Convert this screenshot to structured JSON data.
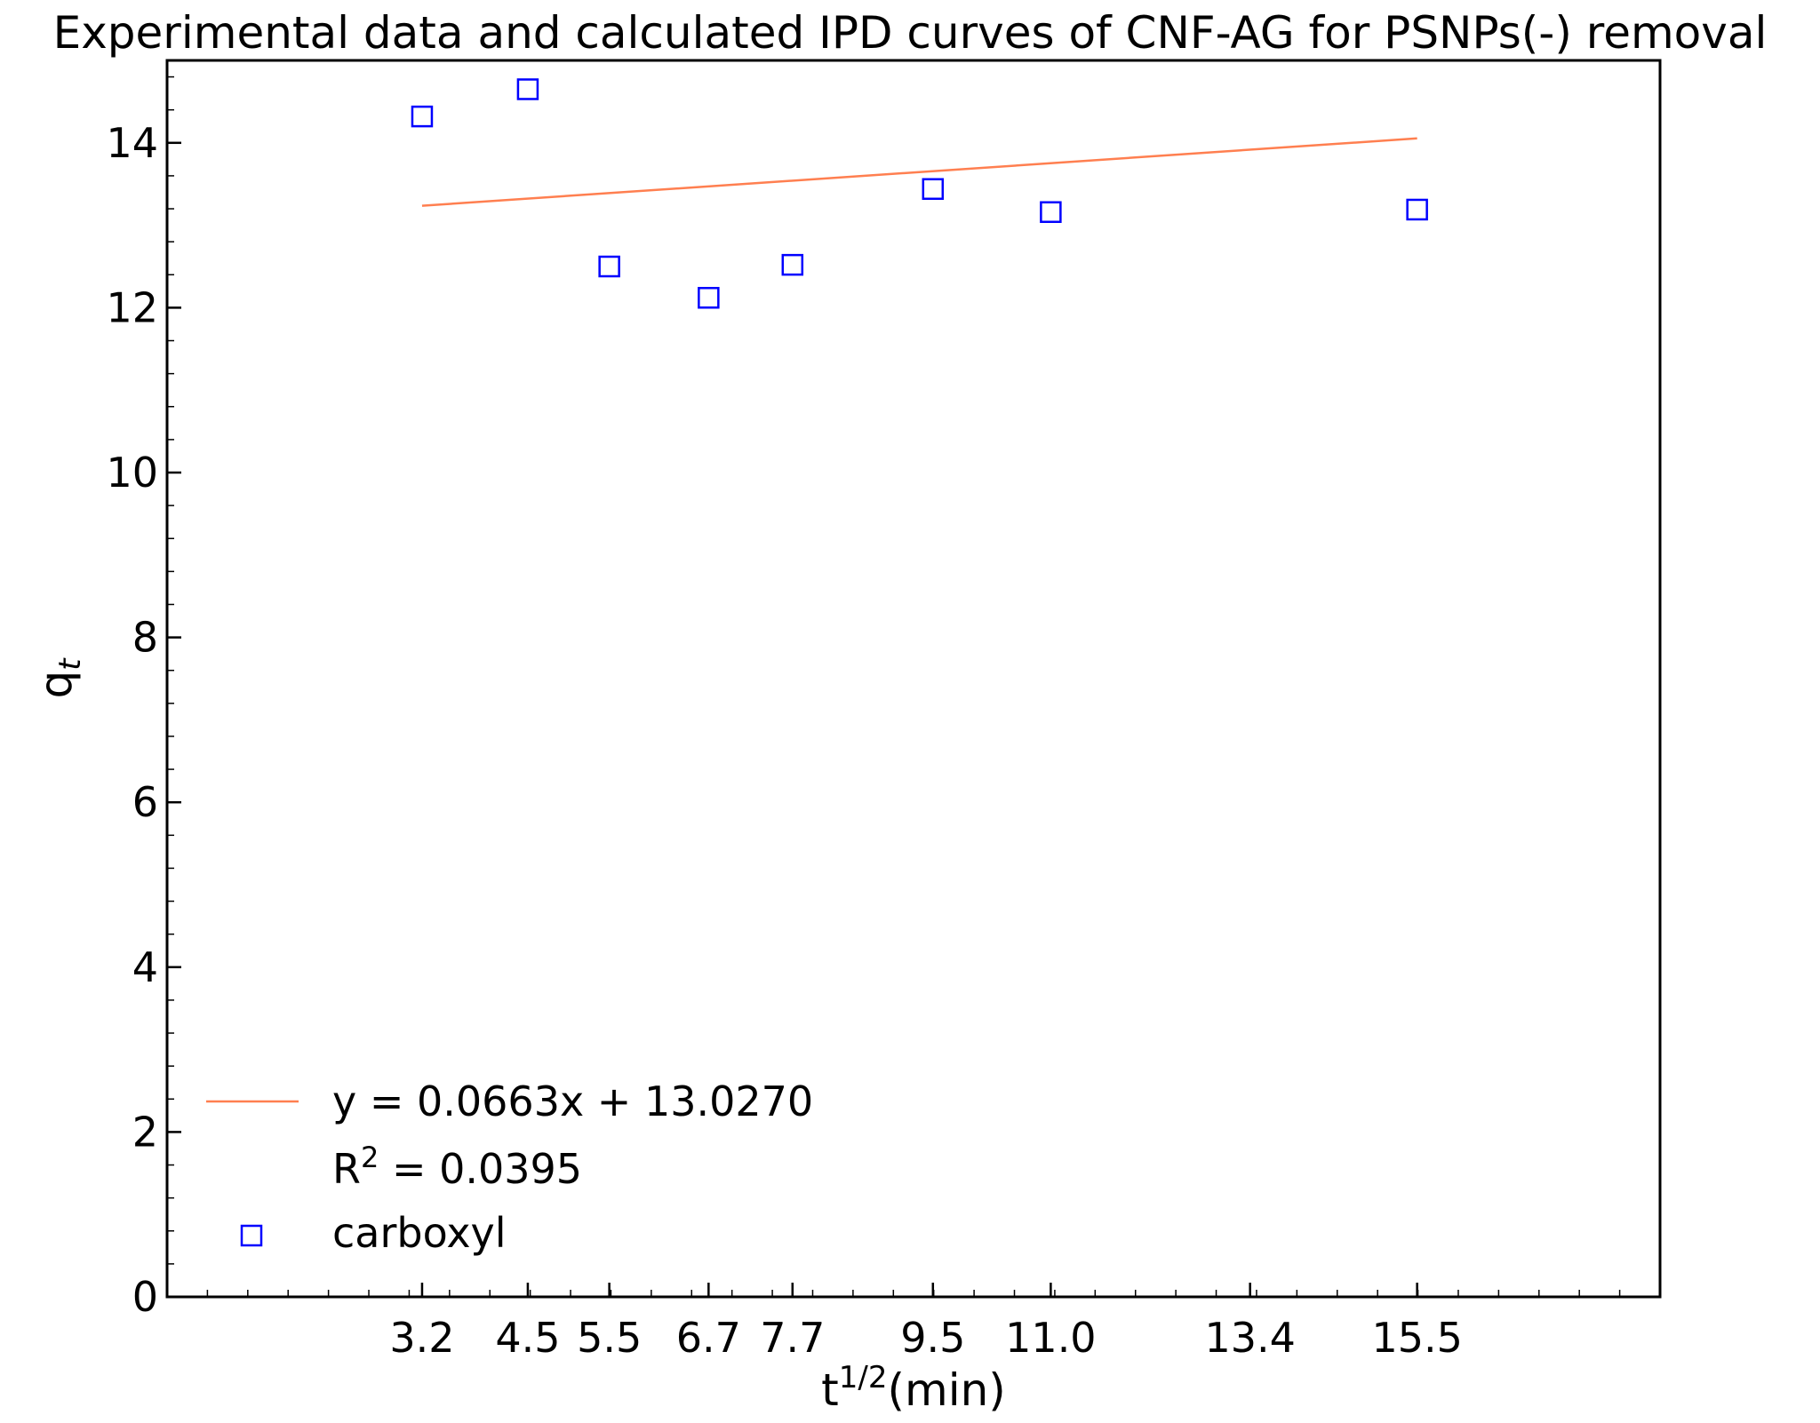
{
  "chart_data": {
    "type": "scatter",
    "title": "Experimental data and calculated IPD curves of CNF-AG for PSNPs(-) removal",
    "xlabel": {
      "base": "t",
      "superscript": "1/2",
      "suffix": "(min)"
    },
    "ylabel": {
      "base": "q",
      "subscript": "t"
    },
    "xlim": [
      0.0,
      18.5
    ],
    "ylim": [
      0,
      15
    ],
    "x_ticks": [
      {
        "value": 3.16,
        "label": "3.2"
      },
      {
        "value": 4.47,
        "label": "4.5"
      },
      {
        "value": 5.48,
        "label": "5.5"
      },
      {
        "value": 6.71,
        "label": "6.7"
      },
      {
        "value": 7.75,
        "label": "7.7"
      },
      {
        "value": 9.49,
        "label": "9.5"
      },
      {
        "value": 10.95,
        "label": "11.0"
      },
      {
        "value": 13.42,
        "label": "13.4"
      },
      {
        "value": 15.49,
        "label": "15.5"
      }
    ],
    "y_ticks": [
      0,
      2,
      4,
      6,
      8,
      10,
      12,
      14
    ],
    "grid": false,
    "legend_position": "lower-left",
    "series": [
      {
        "name": "carboxyl",
        "kind": "scatter",
        "marker": "square-open",
        "color": "#0000ff",
        "x": [
          3.16,
          4.47,
          5.48,
          6.71,
          7.75,
          9.49,
          10.95,
          15.49
        ],
        "y": [
          14.32,
          14.65,
          12.5,
          12.12,
          12.52,
          13.44,
          13.16,
          13.19
        ]
      },
      {
        "kind": "line",
        "color": "#ff7f50",
        "slope": 0.0663,
        "intercept": 13.027,
        "x_range": [
          3.16,
          15.49
        ]
      }
    ],
    "legend": {
      "fit_equation": "y = 0.0663x + 13.0270",
      "r2_label": "R",
      "r2_superscript": "2",
      "r2_value": " = 0.0395",
      "scatter_label": "carboxyl"
    }
  }
}
